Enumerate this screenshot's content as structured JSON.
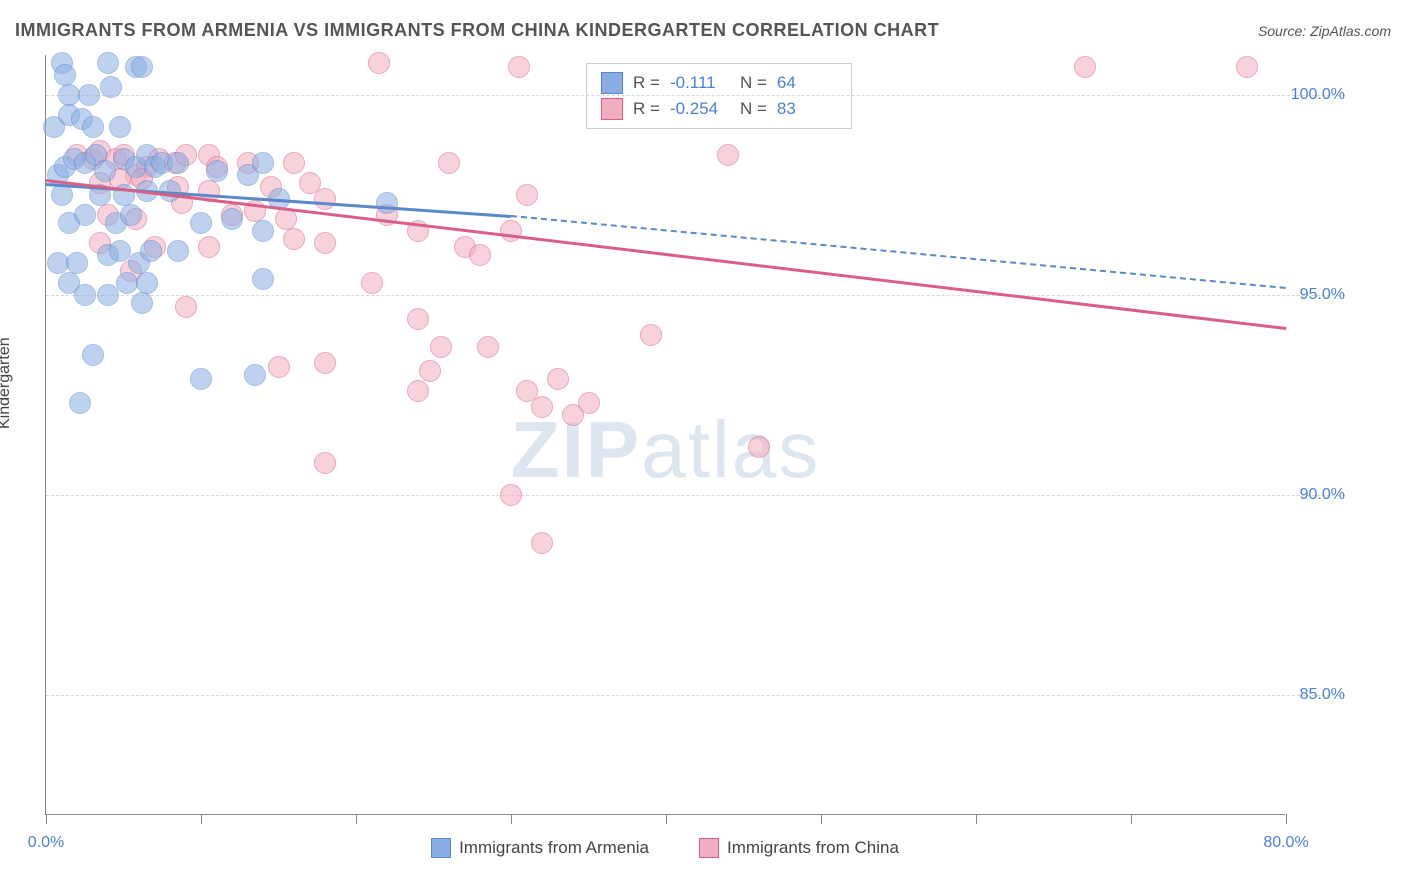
{
  "title": "IMMIGRANTS FROM ARMENIA VS IMMIGRANTS FROM CHINA KINDERGARTEN CORRELATION CHART",
  "source": "Source: ZipAtlas.com",
  "y_axis_label": "Kindergarten",
  "watermark": {
    "bold": "ZIP",
    "light": "atlas"
  },
  "chart": {
    "type": "scatter",
    "xlim": [
      0,
      80
    ],
    "ylim": [
      82,
      101
    ],
    "x_ticks": [
      0,
      10,
      20,
      30,
      40,
      50,
      60,
      70,
      80
    ],
    "x_tick_labels": {
      "0": "0.0%",
      "80": "80.0%"
    },
    "y_ticks": [
      85,
      90,
      95,
      100
    ],
    "y_tick_labels": {
      "85": "85.0%",
      "90": "90.0%",
      "95": "95.0%",
      "100": "100.0%"
    },
    "background_color": "#ffffff",
    "grid_color": "#d8d8d8",
    "axis_color": "#888888",
    "tick_label_color": "#4b7fd6",
    "marker_radius": 11,
    "marker_opacity": 0.55,
    "series": [
      {
        "name": "Immigrants from Armenia",
        "color_fill": "#8aaee3",
        "color_stroke": "#5a88c9",
        "r_value": "-0.111",
        "n_value": "64",
        "trend": {
          "x1": 0,
          "y1": 97.8,
          "x2": 30,
          "y2": 97.0,
          "solid": true
        },
        "trend_ext": {
          "x1": 30,
          "y1": 97.0,
          "x2": 80,
          "y2": 95.2,
          "solid": false
        },
        "points": [
          [
            1.0,
            100.8
          ],
          [
            1.2,
            100.5
          ],
          [
            4.0,
            100.8
          ],
          [
            5.8,
            100.7
          ],
          [
            6.2,
            100.7
          ],
          [
            1.5,
            100.0
          ],
          [
            2.8,
            100.0
          ],
          [
            4.2,
            100.2
          ],
          [
            0.5,
            99.2
          ],
          [
            1.5,
            99.5
          ],
          [
            2.3,
            99.4
          ],
          [
            3.0,
            99.2
          ],
          [
            4.8,
            99.2
          ],
          [
            0.8,
            98.0
          ],
          [
            1.2,
            98.2
          ],
          [
            1.8,
            98.4
          ],
          [
            2.5,
            98.3
          ],
          [
            3.2,
            98.5
          ],
          [
            3.8,
            98.1
          ],
          [
            5.0,
            98.4
          ],
          [
            5.8,
            98.2
          ],
          [
            6.5,
            98.5
          ],
          [
            7.0,
            98.2
          ],
          [
            7.5,
            98.3
          ],
          [
            8.5,
            98.3
          ],
          [
            11.0,
            98.1
          ],
          [
            13.0,
            98.0
          ],
          [
            14.0,
            98.3
          ],
          [
            1.0,
            97.5
          ],
          [
            3.5,
            97.5
          ],
          [
            5.0,
            97.5
          ],
          [
            6.5,
            97.6
          ],
          [
            8.0,
            97.6
          ],
          [
            15.0,
            97.4
          ],
          [
            22.0,
            97.3
          ],
          [
            1.5,
            96.8
          ],
          [
            2.5,
            97.0
          ],
          [
            4.5,
            96.8
          ],
          [
            5.5,
            97.0
          ],
          [
            10.0,
            96.8
          ],
          [
            12.0,
            96.9
          ],
          [
            14.0,
            96.6
          ],
          [
            0.8,
            95.8
          ],
          [
            2.0,
            95.8
          ],
          [
            4.0,
            96.0
          ],
          [
            4.8,
            96.1
          ],
          [
            6.0,
            95.8
          ],
          [
            6.8,
            96.1
          ],
          [
            8.5,
            96.1
          ],
          [
            1.5,
            95.3
          ],
          [
            5.2,
            95.3
          ],
          [
            6.5,
            95.3
          ],
          [
            14.0,
            95.4
          ],
          [
            2.5,
            95.0
          ],
          [
            4.0,
            95.0
          ],
          [
            6.2,
            94.8
          ],
          [
            3.0,
            93.5
          ],
          [
            10.0,
            92.9
          ],
          [
            13.5,
            93.0
          ],
          [
            2.2,
            92.3
          ]
        ]
      },
      {
        "name": "Immigrants from China",
        "color_fill": "#f2aebe",
        "color_stroke": "#d95f88",
        "r_value": "-0.254",
        "n_value": "83",
        "trend": {
          "x1": 0,
          "y1": 97.9,
          "x2": 80,
          "y2": 94.2,
          "solid": true
        },
        "points": [
          [
            21.5,
            100.8
          ],
          [
            30.5,
            100.7
          ],
          [
            67.0,
            100.7
          ],
          [
            77.5,
            100.7
          ],
          [
            2.0,
            98.5
          ],
          [
            3.0,
            98.4
          ],
          [
            3.5,
            98.6
          ],
          [
            4.5,
            98.4
          ],
          [
            5.0,
            98.5
          ],
          [
            5.8,
            98.0
          ],
          [
            6.5,
            98.2
          ],
          [
            7.3,
            98.4
          ],
          [
            8.3,
            98.3
          ],
          [
            9.0,
            98.5
          ],
          [
            10.5,
            98.5
          ],
          [
            11.0,
            98.2
          ],
          [
            13.0,
            98.3
          ],
          [
            16.0,
            98.3
          ],
          [
            26.0,
            98.3
          ],
          [
            31.0,
            97.5
          ],
          [
            44.0,
            98.5
          ],
          [
            3.5,
            97.8
          ],
          [
            4.8,
            97.9
          ],
          [
            6.2,
            97.9
          ],
          [
            8.5,
            97.7
          ],
          [
            8.8,
            97.3
          ],
          [
            10.5,
            97.6
          ],
          [
            14.5,
            97.7
          ],
          [
            17.0,
            97.8
          ],
          [
            18.0,
            97.4
          ],
          [
            4.0,
            97.0
          ],
          [
            5.8,
            96.9
          ],
          [
            12.0,
            97.0
          ],
          [
            13.5,
            97.1
          ],
          [
            15.5,
            96.9
          ],
          [
            22.0,
            97.0
          ],
          [
            24.0,
            96.6
          ],
          [
            30.0,
            96.6
          ],
          [
            3.5,
            96.3
          ],
          [
            7.0,
            96.2
          ],
          [
            10.5,
            96.2
          ],
          [
            16.0,
            96.4
          ],
          [
            18.0,
            96.3
          ],
          [
            27.0,
            96.2
          ],
          [
            28.0,
            96.0
          ],
          [
            5.5,
            95.6
          ],
          [
            21.0,
            95.3
          ],
          [
            9.0,
            94.7
          ],
          [
            24.0,
            94.4
          ],
          [
            25.5,
            93.7
          ],
          [
            28.5,
            93.7
          ],
          [
            39.0,
            94.0
          ],
          [
            15.0,
            93.2
          ],
          [
            18.0,
            93.3
          ],
          [
            24.0,
            92.6
          ],
          [
            24.8,
            93.1
          ],
          [
            31.0,
            92.6
          ],
          [
            32.0,
            92.2
          ],
          [
            33.0,
            92.9
          ],
          [
            34.0,
            92.0
          ],
          [
            35.0,
            92.3
          ],
          [
            46.0,
            91.2
          ],
          [
            18.0,
            90.8
          ],
          [
            30.0,
            90.0
          ],
          [
            32.0,
            88.8
          ]
        ]
      }
    ]
  },
  "legend_rn": {
    "rows": [
      {
        "r_label": "R =",
        "n_label": "N ="
      },
      {
        "r_label": "R =",
        "n_label": "N ="
      }
    ]
  },
  "legend_bottom": {
    "items": [
      {
        "label": "Immigrants from Armenia"
      },
      {
        "label": "Immigrants from China"
      }
    ]
  }
}
